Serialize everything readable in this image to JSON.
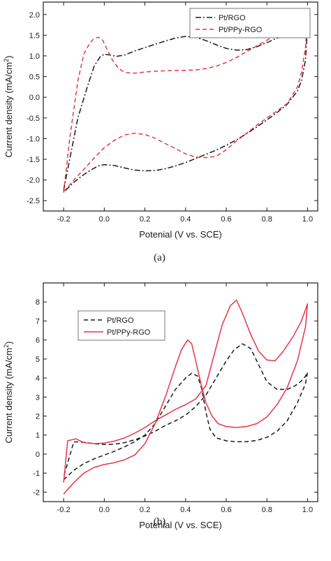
{
  "chart_data": [
    {
      "type": "line",
      "caption": "(a)",
      "xlabel": "Potenial (V vs. SCE)",
      "ylabel_parts": [
        "Current density (mA/cm",
        "2",
        ")"
      ],
      "xlim": [
        -0.3,
        1.05
      ],
      "ylim": [
        -2.75,
        2.3
      ],
      "xticks": [
        -0.2,
        0.0,
        0.2,
        0.4,
        0.6,
        0.8,
        1.0
      ],
      "xtick_labels": [
        "-0.2",
        "0.0",
        "0.2",
        "0.4",
        "0.6",
        "0.8",
        "1.0"
      ],
      "yticks": [
        -2.5,
        -2.0,
        -1.5,
        -1.0,
        -0.5,
        0.0,
        0.5,
        1.0,
        1.5,
        2.0
      ],
      "ytick_labels": [
        "-2.5",
        "-2.0",
        "-1.5",
        "-1.0",
        "-0.5",
        "0.0",
        "0.5",
        "1.0",
        "1.5",
        "2.0"
      ],
      "grid": false,
      "legend_position": "top-right",
      "series": [
        {
          "name": "Pt/RGO",
          "color": "#1a1a1a",
          "dash": "dashdot",
          "x": [
            -0.2,
            -0.17,
            -0.13,
            -0.08,
            -0.05,
            -0.02,
            0.0,
            0.03,
            0.06,
            0.1,
            0.15,
            0.2,
            0.25,
            0.3,
            0.35,
            0.4,
            0.45,
            0.5,
            0.55,
            0.6,
            0.65,
            0.7,
            0.75,
            0.8,
            0.85,
            0.9,
            0.95,
            0.99,
            1.0,
            0.99,
            0.97,
            0.95,
            0.9,
            0.85,
            0.8,
            0.75,
            0.7,
            0.65,
            0.6,
            0.55,
            0.5,
            0.45,
            0.4,
            0.35,
            0.3,
            0.25,
            0.2,
            0.15,
            0.1,
            0.05,
            0.0,
            -0.03,
            -0.07,
            -0.11,
            -0.15,
            -0.18,
            -0.2
          ],
          "y": [
            -2.25,
            -1.5,
            -0.5,
            0.3,
            0.75,
            0.98,
            1.04,
            1.02,
            0.99,
            1.02,
            1.12,
            1.2,
            1.28,
            1.36,
            1.43,
            1.47,
            1.45,
            1.37,
            1.27,
            1.18,
            1.14,
            1.15,
            1.22,
            1.32,
            1.43,
            1.52,
            1.6,
            1.66,
            1.7,
            0.9,
            0.4,
            0.15,
            -0.17,
            -0.37,
            -0.55,
            -0.72,
            -0.88,
            -1.03,
            -1.16,
            -1.28,
            -1.38,
            -1.48,
            -1.58,
            -1.66,
            -1.73,
            -1.77,
            -1.78,
            -1.76,
            -1.71,
            -1.65,
            -1.63,
            -1.66,
            -1.77,
            -1.9,
            -2.06,
            -2.2,
            -2.3
          ]
        },
        {
          "name": "Pt/PPy-RGO",
          "color": "#e8344a",
          "dash": "dashed",
          "x": [
            -0.2,
            -0.17,
            -0.13,
            -0.1,
            -0.07,
            -0.05,
            -0.03,
            -0.01,
            0.01,
            0.04,
            0.07,
            0.1,
            0.15,
            0.2,
            0.25,
            0.3,
            0.35,
            0.4,
            0.45,
            0.5,
            0.55,
            0.6,
            0.65,
            0.7,
            0.75,
            0.8,
            0.85,
            0.9,
            0.95,
            0.99,
            1.0,
            0.99,
            0.97,
            0.95,
            0.9,
            0.85,
            0.8,
            0.75,
            0.7,
            0.65,
            0.6,
            0.55,
            0.5,
            0.45,
            0.4,
            0.35,
            0.3,
            0.25,
            0.2,
            0.15,
            0.1,
            0.05,
            0.0,
            -0.05,
            -0.1,
            -0.15,
            -0.18,
            -0.2
          ],
          "y": [
            -2.3,
            -1.0,
            0.4,
            1.05,
            1.32,
            1.42,
            1.45,
            1.4,
            1.2,
            0.9,
            0.7,
            0.6,
            0.58,
            0.61,
            0.63,
            0.64,
            0.65,
            0.65,
            0.66,
            0.69,
            0.75,
            0.84,
            0.96,
            1.1,
            1.24,
            1.38,
            1.52,
            1.67,
            1.83,
            1.98,
            2.07,
            1.2,
            0.6,
            0.25,
            -0.15,
            -0.33,
            -0.5,
            -0.68,
            -0.87,
            -1.06,
            -1.27,
            -1.43,
            -1.46,
            -1.45,
            -1.37,
            -1.24,
            -1.12,
            -0.99,
            -0.9,
            -0.87,
            -0.91,
            -1.04,
            -1.22,
            -1.47,
            -1.74,
            -2.0,
            -2.17,
            -2.28
          ]
        }
      ]
    },
    {
      "type": "line",
      "caption": "(b)",
      "xlabel": "Potenial (V vs. SCE)",
      "ylabel_parts": [
        "Current density (mA/cm",
        "2",
        ")"
      ],
      "xlim": [
        -0.3,
        1.05
      ],
      "ylim": [
        -2.5,
        9.0
      ],
      "xticks": [
        -0.2,
        0.0,
        0.2,
        0.4,
        0.6,
        0.8,
        1.0
      ],
      "xtick_labels": [
        "-0.2",
        "0.0",
        "0.2",
        "0.4",
        "0.6",
        "0.8",
        "1.0"
      ],
      "yticks": [
        -2,
        -1,
        0,
        1,
        2,
        3,
        4,
        5,
        6,
        7,
        8
      ],
      "ytick_labels": [
        "-2",
        "-1",
        "0",
        "1",
        "2",
        "3",
        "4",
        "5",
        "6",
        "7",
        "8"
      ],
      "grid": false,
      "legend_position": "top-left",
      "series": [
        {
          "name": "Pt/RGO",
          "color": "#1a1a1a",
          "dash": "dashed",
          "x": [
            -0.2,
            -0.15,
            -0.1,
            -0.05,
            0.0,
            0.05,
            0.1,
            0.15,
            0.2,
            0.25,
            0.3,
            0.35,
            0.4,
            0.43,
            0.46,
            0.48,
            0.5,
            0.52,
            0.55,
            0.6,
            0.65,
            0.7,
            0.75,
            0.8,
            0.85,
            0.9,
            0.95,
            0.99,
            1.0,
            0.99,
            0.97,
            0.94,
            0.9,
            0.85,
            0.8,
            0.75,
            0.72,
            0.68,
            0.64,
            0.6,
            0.55,
            0.5,
            0.45,
            0.4,
            0.35,
            0.3,
            0.25,
            0.2,
            0.15,
            0.1,
            0.05,
            0.0,
            -0.05,
            -0.1,
            -0.15,
            -0.2
          ],
          "y": [
            -1.35,
            -0.85,
            -0.5,
            -0.25,
            -0.05,
            0.15,
            0.38,
            0.65,
            1.0,
            1.6,
            2.5,
            3.4,
            4.0,
            4.25,
            4.1,
            3.4,
            2.2,
            1.3,
            0.85,
            0.7,
            0.65,
            0.65,
            0.72,
            0.88,
            1.2,
            1.75,
            2.7,
            3.7,
            4.3,
            4.1,
            3.85,
            3.6,
            3.4,
            3.4,
            3.8,
            4.9,
            5.55,
            5.8,
            5.5,
            4.9,
            4.0,
            3.1,
            2.5,
            2.05,
            1.75,
            1.5,
            1.2,
            0.95,
            0.75,
            0.6,
            0.52,
            0.5,
            0.55,
            0.62,
            0.65,
            -1.2
          ]
        },
        {
          "name": "Pt/PPy-RGO",
          "color": "#e8344a",
          "dash": "solid",
          "x": [
            -0.2,
            -0.15,
            -0.1,
            -0.05,
            0.0,
            0.05,
            0.1,
            0.15,
            0.2,
            0.25,
            0.3,
            0.35,
            0.38,
            0.41,
            0.43,
            0.45,
            0.48,
            0.5,
            0.53,
            0.56,
            0.6,
            0.65,
            0.7,
            0.75,
            0.8,
            0.85,
            0.9,
            0.95,
            0.99,
            1.0,
            0.99,
            0.97,
            0.93,
            0.88,
            0.84,
            0.8,
            0.76,
            0.72,
            0.68,
            0.65,
            0.62,
            0.58,
            0.55,
            0.5,
            0.45,
            0.4,
            0.35,
            0.3,
            0.25,
            0.2,
            0.15,
            0.1,
            0.05,
            0.0,
            -0.05,
            -0.1,
            -0.14,
            -0.18,
            -0.2
          ],
          "y": [
            -2.1,
            -1.5,
            -1.0,
            -0.7,
            -0.55,
            -0.45,
            -0.3,
            -0.05,
            0.55,
            1.6,
            3.0,
            4.6,
            5.5,
            6.0,
            5.8,
            4.9,
            3.5,
            2.7,
            2.0,
            1.6,
            1.45,
            1.4,
            1.45,
            1.6,
            1.95,
            2.6,
            3.5,
            4.9,
            6.7,
            7.9,
            7.6,
            7.0,
            6.2,
            5.4,
            4.9,
            4.95,
            5.4,
            6.3,
            7.4,
            8.1,
            7.8,
            6.8,
            5.6,
            3.6,
            2.9,
            2.6,
            2.35,
            2.05,
            1.75,
            1.4,
            1.1,
            0.85,
            0.68,
            0.58,
            0.55,
            0.6,
            0.8,
            0.7,
            -1.5
          ]
        }
      ]
    }
  ]
}
